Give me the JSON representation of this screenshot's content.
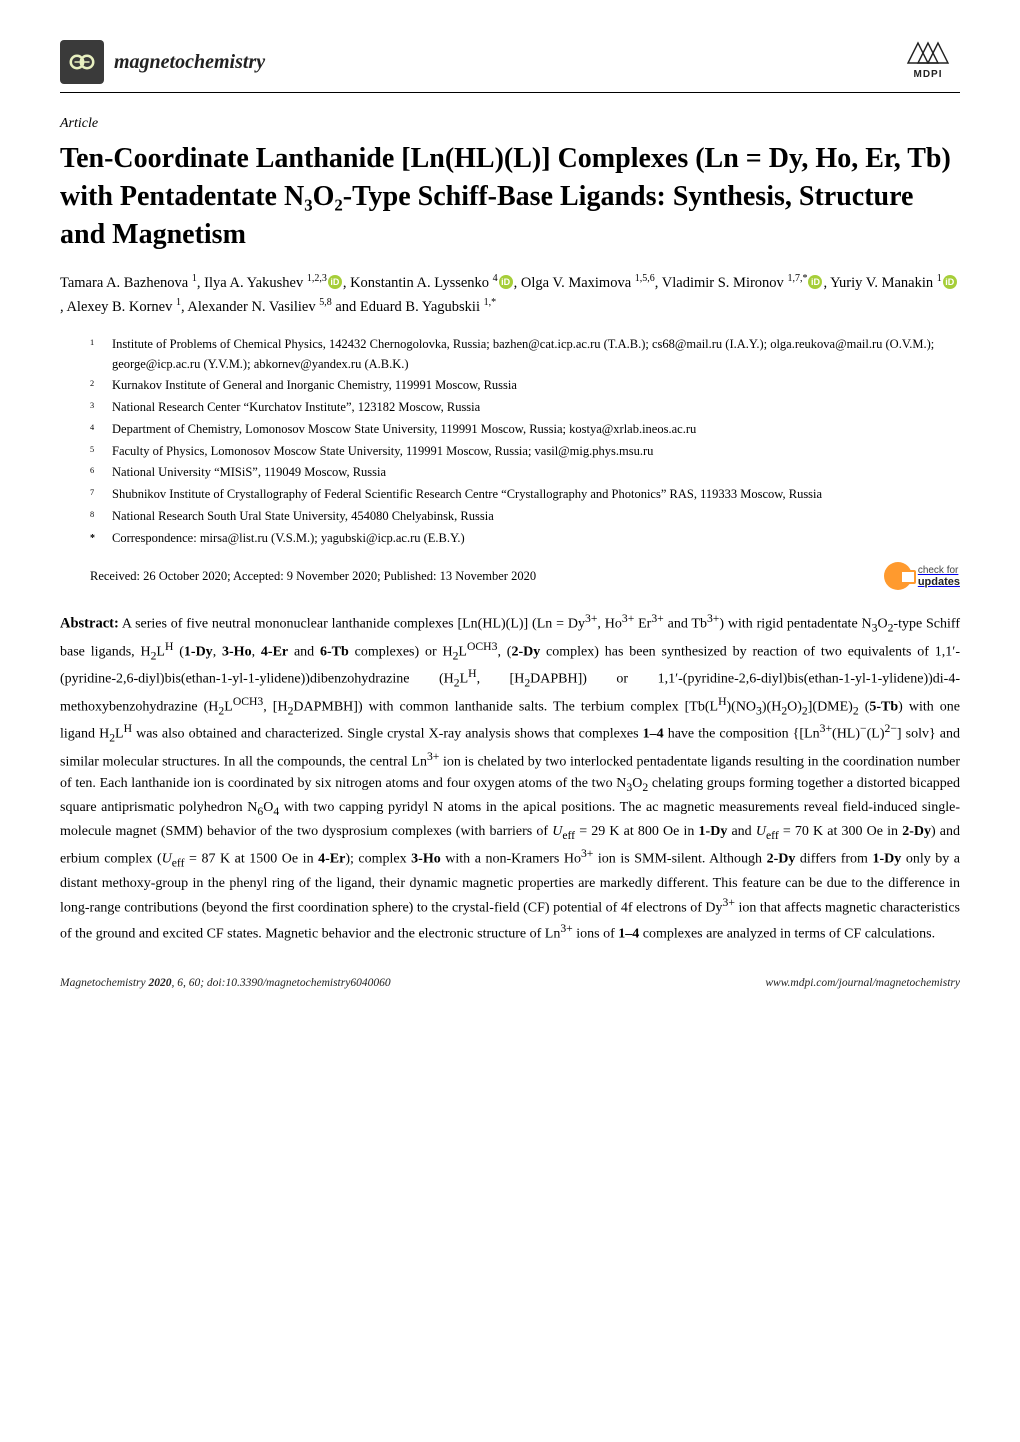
{
  "journal": {
    "name": "magnetochemistry",
    "publisher": "MDPI"
  },
  "article": {
    "type": "Article",
    "title": "Ten-Coordinate Lanthanide [Ln(HL)(L)] Complexes (Ln = Dy, Ho, Er, Tb) with Pentadentate N₃O₂-Type Schiff-Base Ligands: Synthesis, Structure and Magnetism"
  },
  "authors_html": "Tamara A. Bazhenova <sup>1</sup>, Ilya A. Yakushev <sup>1,2,3</sup><span class=\"orcid\">iD</span>, Konstantin A. Lyssenko <sup>4</sup><span class=\"orcid\">iD</span>, Olga V. Maximova <sup>1,5,6</sup>, Vladimir S. Mironov <sup>1,7,*</sup><span class=\"orcid\">iD</span>, Yuriy V. Manakin <sup>1</sup><span class=\"orcid\">iD</span>, Alexey B. Kornev <sup>1</sup>, Alexander N. Vasiliev <sup>5,8</sup> and Eduard B. Yagubskii <sup>1,*</sup>",
  "affiliations": [
    {
      "n": "1",
      "t": "Institute of Problems of Chemical Physics, 142432 Chernogolovka, Russia; bazhen@cat.icp.ac.ru (T.A.B.); cs68@mail.ru (I.A.Y.); olga.reukova@mail.ru (O.V.M.); george@icp.ac.ru (Y.V.M.); abkornev@yandex.ru (A.B.K.)"
    },
    {
      "n": "2",
      "t": "Kurnakov Institute of General and Inorganic Chemistry, 119991 Moscow, Russia"
    },
    {
      "n": "3",
      "t": "National Research Center “Kurchatov Institute”, 123182 Moscow, Russia"
    },
    {
      "n": "4",
      "t": "Department of Chemistry, Lomonosov Moscow State University, 119991 Moscow, Russia; kostya@xrlab.ineos.ac.ru"
    },
    {
      "n": "5",
      "t": "Faculty of Physics, Lomonosov Moscow State University, 119991 Moscow, Russia; vasil@mig.phys.msu.ru"
    },
    {
      "n": "6",
      "t": "National University “MISiS”, 119049 Moscow, Russia"
    },
    {
      "n": "7",
      "t": "Shubnikov Institute of Crystallography of Federal Scientific Research Centre “Crystallography and Photonics” RAS, 119333 Moscow, Russia"
    },
    {
      "n": "8",
      "t": "National Research South Ural State University, 454080 Chelyabinsk, Russia"
    },
    {
      "n": "*",
      "t": "Correspondence: mirsa@list.ru (V.S.M.); yagubski@icp.ac.ru (E.B.Y.)"
    }
  ],
  "dates": "Received: 26 October 2020; Accepted: 9 November 2020; Published: 13 November 2020",
  "check_updates": {
    "line1": "check for",
    "line2": "updates"
  },
  "abstract_html": "<b class=\"lead\">Abstract:</b> A series of five neutral mononuclear lanthanide complexes [Ln(HL)(L)] (Ln = Dy<sup>3+</sup>, Ho<sup>3+</sup> Er<sup>3+</sup> and Tb<sup>3+</sup>) with rigid pentadentate N<sub>3</sub>O<sub>2</sub>-type Schiff base ligands, H<sub>2</sub>L<sup>H</sup> (<b>1-Dy</b>, <b>3-Ho</b>, <b>4-Er</b> and <b>6-Tb</b> complexes) or H<sub>2</sub>L<sup>OCH3</sup>, (<b>2-Dy</b> complex) has been synthesized by reaction of two equivalents of 1,1′-(pyridine-2,6-diyl)bis(ethan-1-yl-1-ylidene))dibenzohydrazine (H<sub>2</sub>L<sup>H</sup>, [H<sub>2</sub>DAPBH]) or 1,1′-(pyridine-2,6-diyl)bis(ethan-1-yl-1-ylidene))di-4-methoxybenzohydrazine (H<sub>2</sub>L<sup>OCH3</sup>, [H<sub>2</sub>DAPMBH]) with common lanthanide salts. The terbium complex [Tb(L<sup>H</sup>)(NO<sub>3</sub>)(H<sub>2</sub>O)<sub>2</sub>](DME)<sub>2</sub> (<b>5-Tb</b>) with one ligand H<sub>2</sub>L<sup>H</sup> was also obtained and characterized. Single crystal X-ray analysis shows that complexes <b>1–4</b> have the composition {[Ln<sup>3+</sup>(HL)<sup>−</sup>(L)<sup>2−</sup>] solv} and similar molecular structures. In all the compounds, the central Ln<sup>3+</sup> ion is chelated by two interlocked pentadentate ligands resulting in the coordination number of ten. Each lanthanide ion is coordinated by six nitrogen atoms and four oxygen atoms of the two N<sub>3</sub>O<sub>2</sub> chelating groups forming together a distorted bicapped square antiprismatic polyhedron N<sub>6</sub>O<sub>4</sub> with two capping pyridyl N atoms in the apical positions. The ac magnetic measurements reveal field-induced single-molecule magnet (SMM) behavior of the two dysprosium complexes (with barriers of <i>U</i><sub>eff</sub> = 29 K at 800 Oe in <b>1-Dy</b> and <i>U</i><sub>eff</sub> = 70 K at 300 Oe in <b>2-Dy</b>) and erbium complex (<i>U</i><sub>eff</sub> = 87 K at 1500 Oe in <b>4-Er</b>); complex <b>3-Ho</b> with a non-Kramers Ho<sup>3+</sup> ion is SMM-silent. Although <b>2-Dy</b> differs from <b>1-Dy</b> only by a distant methoxy-group in the phenyl ring of the ligand, their dynamic magnetic properties are markedly different. This feature can be due to the difference in long-range contributions (beyond the first coordination sphere) to the crystal-field (CF) potential of 4f electrons of Dy<sup>3+</sup> ion that affects magnetic characteristics of the ground and excited CF states. Magnetic behavior and the electronic structure of Ln<sup>3+</sup> ions of <b>1–4</b> complexes are analyzed in terms of CF calculations.",
  "footer": {
    "left": "Magnetochemistry 2020, 6, 60; doi:10.3390/magnetochemistry6040060",
    "right": "www.mdpi.com/journal/magnetochemistry"
  },
  "colors": {
    "orcid_bg": "#a6ce39",
    "check_orange": "#ff9a2e",
    "logo_bg": "#3a3a3a",
    "logo_fg": "#e8f0c0"
  }
}
